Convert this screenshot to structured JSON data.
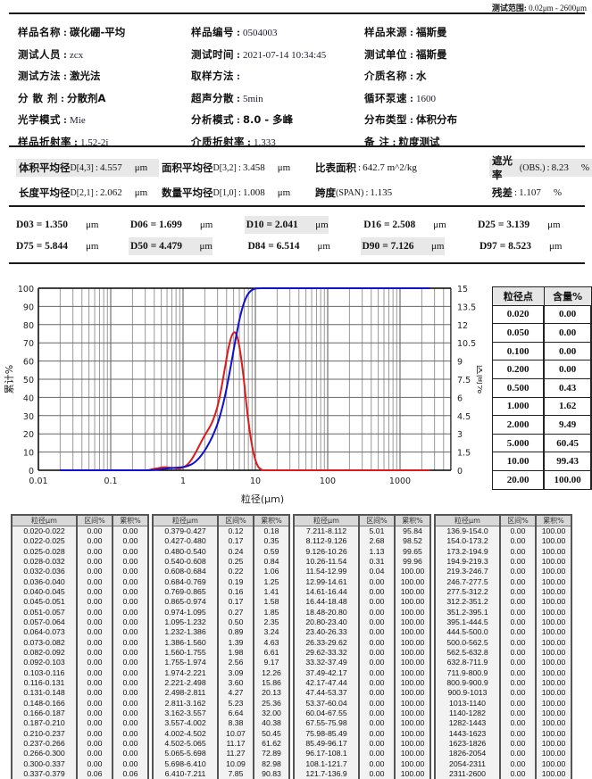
{
  "header": {
    "range_label": "测试范围",
    "range_value": "0.02μm - 2600μm"
  },
  "info": [
    [
      {
        "label": "样品名称",
        "value": "碳化硼-平均",
        "cjk": true
      },
      {
        "label": "样品编号",
        "value": "0504003"
      },
      {
        "label": "样品来源",
        "value": "福斯曼",
        "cjk": true
      }
    ],
    [
      {
        "label": "测试人员",
        "value": "zcx"
      },
      {
        "label": "测试时间",
        "value": "2021-07-14  10:34:45"
      },
      {
        "label": "测试单位",
        "value": "福斯曼",
        "cjk": true
      }
    ],
    [
      {
        "label": "测试方法",
        "value": "激光法",
        "cjk": true
      },
      {
        "label": "取样方法",
        "value": ""
      },
      {
        "label": "介质名称",
        "value": "水",
        "cjk": true
      }
    ],
    [
      {
        "label": "分 散 剂",
        "value": "分散剂A",
        "cjk": true
      },
      {
        "label": "超声分散",
        "value": "5min"
      },
      {
        "label": "循环泵速",
        "value": "1600"
      }
    ],
    [
      {
        "label": "光学模式",
        "value": "Mie"
      },
      {
        "label": "分析模式",
        "value": "8.0 - 多峰",
        "cjk": true
      },
      {
        "label": "分布类型",
        "value": "体积分布",
        "cjk": true
      }
    ],
    [
      {
        "label": "样品折射率",
        "value": "1.52-2i"
      },
      {
        "label": "介质折射率",
        "value": "1.333"
      },
      {
        "label": "备    注",
        "value": "粒度测试",
        "cjk": true
      }
    ]
  ],
  "stats": {
    "row1": [
      {
        "label": "体积平均径",
        "sub": "D[4,3]",
        "value": "4.557",
        "unit": "μm",
        "shaded": true,
        "w": 160
      },
      {
        "label": "面积平均径",
        "sub": "D[3,2]",
        "value": "3.458",
        "unit": "μm",
        "shaded": false,
        "w": 172
      },
      {
        "label": "比表面积",
        "sub": "",
        "value": "642.7 m^2/kg",
        "unit": "",
        "shaded": false,
        "w": 198
      },
      {
        "label": "遮光率",
        "sub": "(OBS.)",
        "value": "8.23",
        "unit": "%",
        "shaded": true,
        "w": 115
      }
    ],
    "row2": [
      {
        "label": "长度平均径",
        "sub": "D[2,1]",
        "value": "2.062",
        "unit": "μm",
        "shaded": false,
        "w": 160
      },
      {
        "label": "数量平均径",
        "sub": "D[1,0]",
        "value": "1.008",
        "unit": "μm",
        "shaded": false,
        "w": 172
      },
      {
        "label": "跨度",
        "sub": "(SPAN)",
        "value": "1.135",
        "unit": "",
        "shaded": false,
        "w": 198
      },
      {
        "label": "残差",
        "sub": "",
        "value": "1.107",
        "unit": "%",
        "shaded": false,
        "w": 115
      }
    ]
  },
  "d_values": {
    "row1": [
      {
        "label": "D03",
        "value": "1.350",
        "unit": "μm",
        "shaded": false
      },
      {
        "label": "D06",
        "value": "1.699",
        "unit": "μm",
        "shaded": false
      },
      {
        "label": "D10",
        "value": "2.041",
        "unit": "μm",
        "shaded": true
      },
      {
        "label": "D16",
        "value": "2.508",
        "unit": "μm",
        "shaded": false
      },
      {
        "label": "D25",
        "value": "3.139",
        "unit": "μm",
        "shaded": false
      }
    ],
    "row2": [
      {
        "label": "D75",
        "value": "5.844",
        "unit": "μm",
        "shaded": false
      },
      {
        "label": "D50",
        "value": "4.479",
        "unit": "μm",
        "shaded": true
      },
      {
        "label": "D84",
        "value": "6.514",
        "unit": "μm",
        "shaded": false
      },
      {
        "label": "D90",
        "value": "7.126",
        "unit": "μm",
        "shaded": true
      },
      {
        "label": "D97",
        "value": "8.523",
        "unit": "μm",
        "shaded": false
      }
    ]
  },
  "point_table": {
    "headers": [
      "粒径点",
      "含量%"
    ],
    "rows": [
      [
        "0.020",
        "0.00"
      ],
      [
        "0.050",
        "0.00"
      ],
      [
        "0.100",
        "0.00"
      ],
      [
        "0.200",
        "0.00"
      ],
      [
        "0.500",
        "0.43"
      ],
      [
        "1.000",
        "1.62"
      ],
      [
        "2.000",
        "9.49"
      ],
      [
        "5.000",
        "60.45"
      ],
      [
        "10.00",
        "99.43"
      ],
      [
        "20.00",
        "100.00"
      ]
    ]
  },
  "chart_data": {
    "type": "line",
    "title": "",
    "xlabel": "粒径(μm)",
    "ylabel": "累计%",
    "y2label": "区间%",
    "xscale": "log",
    "xlim": [
      0.01,
      5000
    ],
    "ylim": [
      0,
      100
    ],
    "y2lim": [
      0,
      15
    ],
    "xticks": [
      "0.01",
      "0.1",
      "1",
      "10",
      "100",
      "1000"
    ],
    "yticks": [
      "0",
      "10",
      "20",
      "30",
      "40",
      "50",
      "60",
      "70",
      "80",
      "90",
      "100"
    ],
    "y2ticks": [
      "0",
      "1.5",
      "3",
      "4.5",
      "6",
      "7.5",
      "9",
      "10.5",
      "12",
      "13.5",
      "15"
    ],
    "grid": true,
    "series": [
      {
        "name": "累计%",
        "color": "#1010d0",
        "axis": "left"
      },
      {
        "name": "区间%",
        "color": "#dd1a1a",
        "axis": "right"
      }
    ],
    "x": [
      0.021,
      0.0235,
      0.0265,
      0.03,
      0.034,
      0.038,
      0.0425,
      0.048,
      0.054,
      0.0605,
      0.0685,
      0.0775,
      0.087,
      0.0975,
      0.1095,
      0.1235,
      0.1395,
      0.157,
      0.1765,
      0.1985,
      0.2235,
      0.2515,
      0.283,
      0.3185,
      0.358,
      0.403,
      0.4535,
      0.51,
      0.574,
      0.646,
      0.7265,
      0.817,
      0.9195,
      1.0345,
      1.1635,
      1.309,
      1.473,
      1.6575,
      1.8645,
      2.0975,
      2.3595,
      2.6545,
      2.9865,
      3.3595,
      3.7795,
      4.252,
      4.7835,
      5.3815,
      6.054,
      6.8105,
      7.6615,
      8.619,
      9.693,
      10.9,
      12.265,
      13.8,
      15.525,
      17.46,
      19.64,
      22.1,
      24.865,
      27.975,
      31.47,
      35.405,
      39.83,
      44.805,
      50.405,
      56.705,
      63.795,
      71.765,
      80.735,
      90.83,
      102.1,
      114.9,
      129.3,
      145.45,
      163.6,
      184.05,
      207.1,
      233.0,
      262.1,
      294.85,
      331.7,
      373.15,
      419.8,
      472.25,
      531.25,
      597.65,
      672.35,
      756.4,
      850.9,
      957,
      1076.5,
      1211,
      1362.5,
      1533,
      1724.5,
      1940,
      2182.5,
      2455.5
    ],
    "interval": [
      0,
      0,
      0,
      0,
      0,
      0,
      0,
      0,
      0,
      0,
      0,
      0,
      0,
      0,
      0,
      0,
      0,
      0,
      0,
      0,
      0,
      0,
      0,
      0,
      0.06,
      0.12,
      0.17,
      0.24,
      0.25,
      0.22,
      0.19,
      0.16,
      0.17,
      0.27,
      0.5,
      0.89,
      1.39,
      1.98,
      2.56,
      3.09,
      3.6,
      4.27,
      5.23,
      6.64,
      8.38,
      10.07,
      11.17,
      11.27,
      10.09,
      7.85,
      5.01,
      2.68,
      1.13,
      0.31,
      0.04,
      0,
      0,
      0,
      0,
      0,
      0,
      0,
      0,
      0,
      0,
      0,
      0,
      0,
      0,
      0,
      0,
      0,
      0,
      0,
      0,
      0,
      0,
      0,
      0,
      0,
      0,
      0,
      0,
      0,
      0,
      0,
      0,
      0,
      0,
      0,
      0,
      0,
      0,
      0,
      0,
      0,
      0,
      0,
      0,
      0
    ],
    "cumulative": [
      0,
      0,
      0,
      0,
      0,
      0,
      0,
      0,
      0,
      0,
      0,
      0,
      0,
      0,
      0,
      0,
      0,
      0,
      0,
      0,
      0,
      0,
      0,
      0,
      0.06,
      0.18,
      0.35,
      0.59,
      0.84,
      1.06,
      1.25,
      1.41,
      1.58,
      1.85,
      2.35,
      3.24,
      4.63,
      6.61,
      9.17,
      12.26,
      15.86,
      20.13,
      25.36,
      32.0,
      40.38,
      50.45,
      61.62,
      72.89,
      82.98,
      90.83,
      95.84,
      98.52,
      99.65,
      99.96,
      100,
      100,
      100,
      100,
      100,
      100,
      100,
      100,
      100,
      100,
      100,
      100,
      100,
      100,
      100,
      100,
      100,
      100,
      100,
      100,
      100,
      100,
      100,
      100,
      100,
      100,
      100,
      100,
      100,
      100,
      100,
      100,
      100,
      100,
      100,
      100,
      100,
      100,
      100,
      100,
      100,
      100,
      100,
      100,
      100,
      100
    ]
  },
  "data_table": {
    "headers": [
      "粒径μm",
      "区间%",
      "累积%"
    ],
    "columns": [
      [
        [
          "0.020-0.022",
          "0.00",
          "0.00"
        ],
        [
          "0.022-0.025",
          "0.00",
          "0.00"
        ],
        [
          "0.025-0.028",
          "0.00",
          "0.00"
        ],
        [
          "0.028-0.032",
          "0.00",
          "0.00"
        ],
        [
          "0.032-0.036",
          "0.00",
          "0.00"
        ],
        [
          "0.036-0.040",
          "0.00",
          "0.00"
        ],
        [
          "0.040-0.045",
          "0.00",
          "0.00"
        ],
        [
          "0.045-0.051",
          "0.00",
          "0.00"
        ],
        [
          "0.051-0.057",
          "0.00",
          "0.00"
        ],
        [
          "0.057-0.064",
          "0.00",
          "0.00"
        ],
        [
          "0.064-0.073",
          "0.00",
          "0.00"
        ],
        [
          "0.073-0.082",
          "0.00",
          "0.00"
        ],
        [
          "0.082-0.092",
          "0.00",
          "0.00"
        ],
        [
          "0.092-0.103",
          "0.00",
          "0.00"
        ],
        [
          "0.103-0.116",
          "0.00",
          "0.00"
        ],
        [
          "0.116-0.131",
          "0.00",
          "0.00"
        ],
        [
          "0.131-0.148",
          "0.00",
          "0.00"
        ],
        [
          "0.148-0.166",
          "0.00",
          "0.00"
        ],
        [
          "0.166-0.187",
          "0.00",
          "0.00"
        ],
        [
          "0.187-0.210",
          "0.00",
          "0.00"
        ],
        [
          "0.210-0.237",
          "0.00",
          "0.00"
        ],
        [
          "0.237-0.266",
          "0.00",
          "0.00"
        ],
        [
          "0.266-0.300",
          "0.00",
          "0.00"
        ],
        [
          "0.300-0.337",
          "0.00",
          "0.00"
        ],
        [
          "0.337-0.379",
          "0.06",
          "0.06"
        ]
      ],
      [
        [
          "0.379-0.427",
          "0.12",
          "0.18"
        ],
        [
          "0.427-0.480",
          "0.17",
          "0.35"
        ],
        [
          "0.480-0.540",
          "0.24",
          "0.59"
        ],
        [
          "0.540-0.608",
          "0.25",
          "0.84"
        ],
        [
          "0.608-0.684",
          "0.22",
          "1.06"
        ],
        [
          "0.684-0.769",
          "0.19",
          "1.25"
        ],
        [
          "0.769-0.865",
          "0.16",
          "1.41"
        ],
        [
          "0.865-0.974",
          "0.17",
          "1.58"
        ],
        [
          "0.974-1.095",
          "0.27",
          "1.85"
        ],
        [
          "1.095-1.232",
          "0.50",
          "2.35"
        ],
        [
          "1.232-1.386",
          "0.89",
          "3.24"
        ],
        [
          "1.386-1.560",
          "1.39",
          "4.63"
        ],
        [
          "1.560-1.755",
          "1.98",
          "6.61"
        ],
        [
          "1.755-1.974",
          "2.56",
          "9.17"
        ],
        [
          "1.974-2.221",
          "3.09",
          "12.26"
        ],
        [
          "2.221-2.498",
          "3.60",
          "15.86"
        ],
        [
          "2.498-2.811",
          "4.27",
          "20.13"
        ],
        [
          "2.811-3.162",
          "5.23",
          "25.36"
        ],
        [
          "3.162-3.557",
          "6.64",
          "32.00"
        ],
        [
          "3.557-4.002",
          "8.38",
          "40.38"
        ],
        [
          "4.002-4.502",
          "10.07",
          "50.45"
        ],
        [
          "4.502-5.065",
          "11.17",
          "61.62"
        ],
        [
          "5.065-5.698",
          "11.27",
          "72.89"
        ],
        [
          "5.698-6.410",
          "10.09",
          "82.98"
        ],
        [
          "6.410-7.211",
          "7.85",
          "90.83"
        ]
      ],
      [
        [
          "7.211-8.112",
          "5.01",
          "95.84"
        ],
        [
          "8.112-9.126",
          "2.68",
          "98.52"
        ],
        [
          "9.126-10.26",
          "1.13",
          "99.65"
        ],
        [
          "10.26-11.54",
          "0.31",
          "99.96"
        ],
        [
          "11.54-12.99",
          "0.04",
          "100.00"
        ],
        [
          "12.99-14.61",
          "0.00",
          "100.00"
        ],
        [
          "14.61-16.44",
          "0.00",
          "100.00"
        ],
        [
          "16.44-18.48",
          "0.00",
          "100.00"
        ],
        [
          "18.48-20.80",
          "0.00",
          "100.00"
        ],
        [
          "20.80-23.40",
          "0.00",
          "100.00"
        ],
        [
          "23.40-26.33",
          "0.00",
          "100.00"
        ],
        [
          "26.33-29.62",
          "0.00",
          "100.00"
        ],
        [
          "29.62-33.32",
          "0.00",
          "100.00"
        ],
        [
          "33.32-37.49",
          "0.00",
          "100.00"
        ],
        [
          "37.49-42.17",
          "0.00",
          "100.00"
        ],
        [
          "42.17-47.44",
          "0.00",
          "100.00"
        ],
        [
          "47.44-53.37",
          "0.00",
          "100.00"
        ],
        [
          "53.37-60.04",
          "0.00",
          "100.00"
        ],
        [
          "60.04-67.55",
          "0.00",
          "100.00"
        ],
        [
          "67.55-75.98",
          "0.00",
          "100.00"
        ],
        [
          "75.98-85.49",
          "0.00",
          "100.00"
        ],
        [
          "85.49-96.17",
          "0.00",
          "100.00"
        ],
        [
          "96.17-108.1",
          "0.00",
          "100.00"
        ],
        [
          "108.1-121.7",
          "0.00",
          "100.00"
        ],
        [
          "121.7-136.9",
          "0.00",
          "100.00"
        ]
      ],
      [
        [
          "136.9-154.0",
          "0.00",
          "100.00"
        ],
        [
          "154.0-173.2",
          "0.00",
          "100.00"
        ],
        [
          "173.2-194.9",
          "0.00",
          "100.00"
        ],
        [
          "194.9-219.3",
          "0.00",
          "100.00"
        ],
        [
          "219.3-246.7",
          "0.00",
          "100.00"
        ],
        [
          "246.7-277.5",
          "0.00",
          "100.00"
        ],
        [
          "277.5-312.2",
          "0.00",
          "100.00"
        ],
        [
          "312.2-351.2",
          "0.00",
          "100.00"
        ],
        [
          "351.2-395.1",
          "0.00",
          "100.00"
        ],
        [
          "395.1-444.5",
          "0.00",
          "100.00"
        ],
        [
          "444.5-500.0",
          "0.00",
          "100.00"
        ],
        [
          "500.0-562.5",
          "0.00",
          "100.00"
        ],
        [
          "562.5-632.8",
          "0.00",
          "100.00"
        ],
        [
          "632.8-711.9",
          "0.00",
          "100.00"
        ],
        [
          "711.9-800.9",
          "0.00",
          "100.00"
        ],
        [
          "800.9-900.9",
          "0.00",
          "100.00"
        ],
        [
          "900.9-1013",
          "0.00",
          "100.00"
        ],
        [
          "1013-1140",
          "0.00",
          "100.00"
        ],
        [
          "1140-1282",
          "0.00",
          "100.00"
        ],
        [
          "1282-1443",
          "0.00",
          "100.00"
        ],
        [
          "1443-1623",
          "0.00",
          "100.00"
        ],
        [
          "1623-1826",
          "0.00",
          "100.00"
        ],
        [
          "1826-2054",
          "0.00",
          "100.00"
        ],
        [
          "2054-2311",
          "0.00",
          "100.00"
        ],
        [
          "2311-2600",
          "0.00",
          "100.00"
        ]
      ]
    ]
  }
}
